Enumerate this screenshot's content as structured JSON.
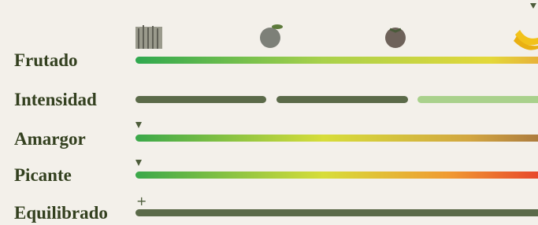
{
  "profile": {
    "rows": [
      {
        "label": "Frutado"
      },
      {
        "label": "Intensidad"
      },
      {
        "label": "Amargor"
      },
      {
        "label": "Picante"
      },
      {
        "label": "Equilibrado",
        "marker": "+"
      }
    ]
  }
}
